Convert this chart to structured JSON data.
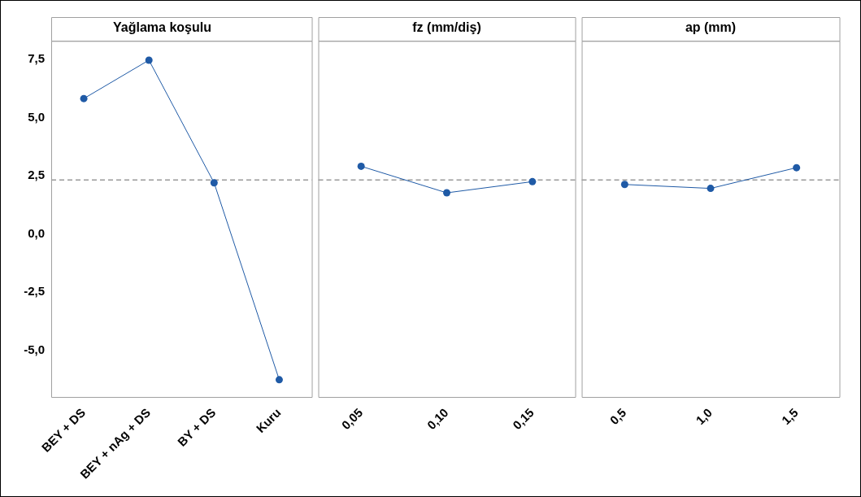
{
  "chart_data": [
    {
      "type": "line",
      "title": "Yağlama koşulu",
      "categories": [
        "BEY + DS",
        "BEY + nAg + DS",
        "BY + DS",
        "Kuru"
      ],
      "values": [
        5.82,
        7.47,
        2.2,
        -6.26
      ],
      "color": "#1f5aa6",
      "marker": "circle",
      "line_style": "solid",
      "ylim": [
        -7.0,
        8.3
      ],
      "yticks": [
        {
          "value": -5,
          "label": "-5,0"
        },
        {
          "value": -2.5,
          "label": "-2,5"
        },
        {
          "value": 0,
          "label": "0,0"
        },
        {
          "value": 2.5,
          "label": "2,5"
        },
        {
          "value": 5,
          "label": "5,0"
        },
        {
          "value": 7.5,
          "label": "7,5"
        }
      ],
      "ref_lines": [
        {
          "axis": "y",
          "value": 2.32,
          "color": "#999999",
          "line_style": "dashed"
        }
      ]
    },
    {
      "type": "line",
      "title": "fz (mm/diş)",
      "categories": [
        "0,05",
        "0,10",
        "0,15"
      ],
      "values": [
        2.91,
        1.77,
        2.25
      ],
      "color": "#1f5aa6",
      "marker": "circle",
      "line_style": "solid",
      "ylim": [
        -7.0,
        8.3
      ],
      "tick_labels": "x",
      "ref_lines": [
        {
          "axis": "y",
          "value": 2.32,
          "color": "#999999",
          "line_style": "dashed"
        }
      ]
    },
    {
      "type": "line",
      "title": "ap (mm)",
      "categories": [
        "0,5",
        "1,0",
        "1,5"
      ],
      "values": [
        2.13,
        1.96,
        2.85
      ],
      "color": "#1f5aa6",
      "marker": "circle",
      "line_style": "solid",
      "ylim": [
        -7.0,
        8.3
      ],
      "tick_labels": "x",
      "ref_lines": [
        {
          "axis": "y",
          "value": 2.32,
          "color": "#999999",
          "line_style": "dashed"
        }
      ]
    }
  ]
}
